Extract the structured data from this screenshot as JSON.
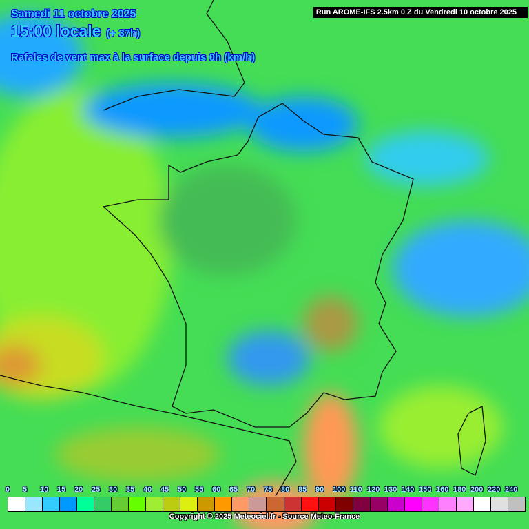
{
  "header": {
    "date": "Samedi 11 octobre 2025",
    "time": "15:00 locale",
    "lead": "(+ 37h)",
    "parameter": "Rafales de vent max à la surface depuis 0h (km/h)",
    "run": "Run AROME-IFS 2.5km 0 Z du Vendredi 10 octobre 2025"
  },
  "legend": {
    "labels": [
      "0",
      "5",
      "10",
      "15",
      "20",
      "25",
      "30",
      "35",
      "40",
      "45",
      "50",
      "55",
      "60",
      "65",
      "70",
      "75",
      "80",
      "85",
      "90",
      "100",
      "110",
      "120",
      "130",
      "140",
      "150",
      "160",
      "180",
      "200",
      "220",
      "240"
    ],
    "colors": [
      "#ffffff",
      "#99e6ff",
      "#33ccff",
      "#0099ff",
      "#00ff99",
      "#33cc66",
      "#66cc33",
      "#66ff00",
      "#a0ee33",
      "#bbcc11",
      "#ddee11",
      "#cc9900",
      "#ff9900",
      "#ff9966",
      "#cc9999",
      "#cc6633",
      "#cc3333",
      "#ff1111",
      "#cc0000",
      "#800000",
      "#800040",
      "#990066",
      "#cc00cc",
      "#ff00ff",
      "#ff33ff",
      "#ff80ff",
      "#ffaaff",
      "#ffffff",
      "#e0e0e0",
      "#c0c0c0"
    ]
  },
  "footer": {
    "copyright": "Copyright © 2025 Meteociel.fr - Source Meteo-France"
  }
}
